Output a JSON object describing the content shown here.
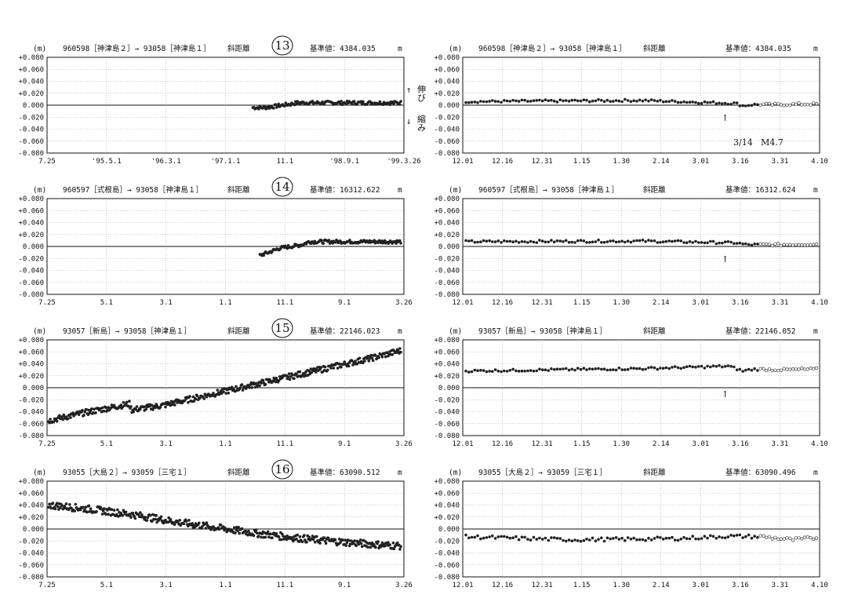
{
  "yticks": [
    "+0.080",
    "+0.060",
    "+0.040",
    "+0.020",
    "0.000",
    "-0.020",
    "-0.040",
    "-0.060",
    "-0.080"
  ],
  "long_xticks_first": [
    "7.25",
    "'95.5.1",
    "'96.3.1",
    "'97.1.1",
    "11.1",
    "'98.9.1",
    "'99.3.26"
  ],
  "long_xticks": [
    "7.25",
    "5.1",
    "3.1",
    "1.1",
    "11.1",
    "9.1",
    "3.26"
  ],
  "short_xticks": [
    "12.01",
    "12.16",
    "12.31",
    "1.15",
    "1.30",
    "2.14",
    "3.01",
    "3.16",
    "3.31",
    "4.10"
  ],
  "side_labels": {
    "up_arrow": "↑",
    "up": "伸び",
    "down_arrow": "↓",
    "down": "縮み"
  },
  "annotation": {
    "arrow": "↑",
    "date": "3/14",
    "mag": "M4.7"
  },
  "panels": [
    {
      "id": "13",
      "left_header": {
        "unit": "(m)",
        "pair": "960598［神津島２］→ 93058［神津島１］",
        "measure": "斜距離",
        "ref_label": "基準値：4384.035",
        "ref_unit": "m"
      },
      "right_header": {
        "unit": "(m)",
        "pair": "960598［神津島２］→ 93058［神津島１］",
        "measure": "斜距離",
        "ref_label": "基準値：4384.035",
        "ref_unit": "m"
      }
    },
    {
      "id": "14",
      "left_header": {
        "unit": "(m)",
        "pair": "960597［式根島］→ 93058［神津島１］",
        "measure": "斜距離",
        "ref_label": "基準値：16312.622",
        "ref_unit": "m"
      },
      "right_header": {
        "unit": "(m)",
        "pair": "960597［式根島］→ 93058［神津島１］",
        "measure": "斜距離",
        "ref_label": "基準値：16312.624",
        "ref_unit": "m"
      }
    },
    {
      "id": "15",
      "left_header": {
        "unit": "(m)",
        "pair": "93057［新島］→ 93058［神津島１］",
        "measure": "斜距離",
        "ref_label": "基準値：22146.023",
        "ref_unit": "m"
      },
      "right_header": {
        "unit": "(m)",
        "pair": "93057［新島］→ 93058［神津島１］",
        "measure": "斜距離",
        "ref_label": "基準値：22146.052",
        "ref_unit": "m"
      }
    },
    {
      "id": "16",
      "left_header": {
        "unit": "(m)",
        "pair": "93055［大島２］→ 93059［三宅１］",
        "measure": "斜距離",
        "ref_label": "基準値：63090.512",
        "ref_unit": "m"
      },
      "right_header": {
        "unit": "(m)",
        "pair": "93055［大島２］→ 93059［三宅１］",
        "measure": "斜距離",
        "ref_label": "基準値：63090.496",
        "ref_unit": "m"
      }
    }
  ],
  "chart_data": [
    {
      "type": "scatter",
      "panel": "13-long",
      "ylim": [
        -0.08,
        0.08
      ],
      "series": [
        {
          "x": [
            0.0,
            0.08,
            0.12,
            0.2,
            0.26,
            0.3,
            0.33
          ],
          "y": [
            -0.004,
            -0.004,
            -0.003,
            0.0,
            0.002,
            0.004,
            0.004
          ],
          "noise": 0.003
        }
      ]
    },
    {
      "type": "scatter",
      "panel": "13-short",
      "ylim": [
        -0.08,
        0.08
      ],
      "series": [
        {
          "x": [
            0.0,
            0.5,
            0.77,
            0.79,
            0.82,
            0.9,
            1.0
          ],
          "y": [
            0.006,
            0.008,
            0.003,
            -0.001,
            0.001,
            0.001,
            0.002
          ],
          "noise": 0.002
        }
      ]
    },
    {
      "type": "scatter",
      "panel": "14-long",
      "ylim": [
        -0.08,
        0.08
      ],
      "series": [
        {
          "x": [
            0.0,
            0.06,
            0.14,
            0.22,
            0.3,
            0.35
          ],
          "y": [
            -0.015,
            -0.01,
            -0.003,
            0.0,
            0.003,
            0.008
          ],
          "noise": 0.003
        }
      ]
    },
    {
      "type": "scatter",
      "panel": "14-short",
      "ylim": [
        -0.08,
        0.08
      ],
      "series": [
        {
          "x": [
            0.0,
            0.5,
            0.77,
            0.8,
            0.9,
            1.0
          ],
          "y": [
            0.008,
            0.009,
            0.006,
            0.003,
            0.003,
            0.004
          ],
          "noise": 0.002
        }
      ]
    },
    {
      "type": "scatter",
      "panel": "15-long",
      "ylim": [
        -0.08,
        0.08
      ],
      "series": [
        {
          "x": [
            0.0,
            0.1,
            0.23,
            0.235,
            0.32,
            0.47,
            0.62,
            0.77,
            0.92,
            1.0
          ],
          "y": [
            -0.055,
            -0.042,
            -0.027,
            -0.037,
            -0.03,
            -0.01,
            0.01,
            0.03,
            0.05,
            0.062
          ],
          "noise": 0.005
        }
      ]
    },
    {
      "type": "scatter",
      "panel": "15-short",
      "ylim": [
        -0.08,
        0.08
      ],
      "series": [
        {
          "x": [
            0.0,
            0.5,
            0.75,
            0.79,
            0.82,
            0.9,
            1.0
          ],
          "y": [
            0.028,
            0.032,
            0.036,
            0.028,
            0.031,
            0.03,
            0.031
          ],
          "noise": 0.002
        }
      ]
    },
    {
      "type": "scatter",
      "panel": "16-long",
      "ylim": [
        -0.08,
        0.08
      ],
      "series": [
        {
          "x": [
            0.0,
            0.12,
            0.24,
            0.36,
            0.48,
            0.6,
            0.72,
            0.84,
            0.96,
            1.0
          ],
          "y": [
            0.04,
            0.033,
            0.024,
            0.012,
            0.002,
            -0.008,
            -0.016,
            -0.022,
            -0.027,
            -0.028
          ],
          "noise": 0.006
        }
      ]
    },
    {
      "type": "scatter",
      "panel": "16-short",
      "ylim": [
        -0.08,
        0.08
      ],
      "series": [
        {
          "x": [
            0.0,
            0.3,
            0.6,
            0.75,
            0.85,
            0.93,
            1.0
          ],
          "y": [
            -0.013,
            -0.018,
            -0.016,
            -0.012,
            -0.013,
            -0.018,
            -0.015
          ],
          "noise": 0.003
        }
      ]
    }
  ]
}
